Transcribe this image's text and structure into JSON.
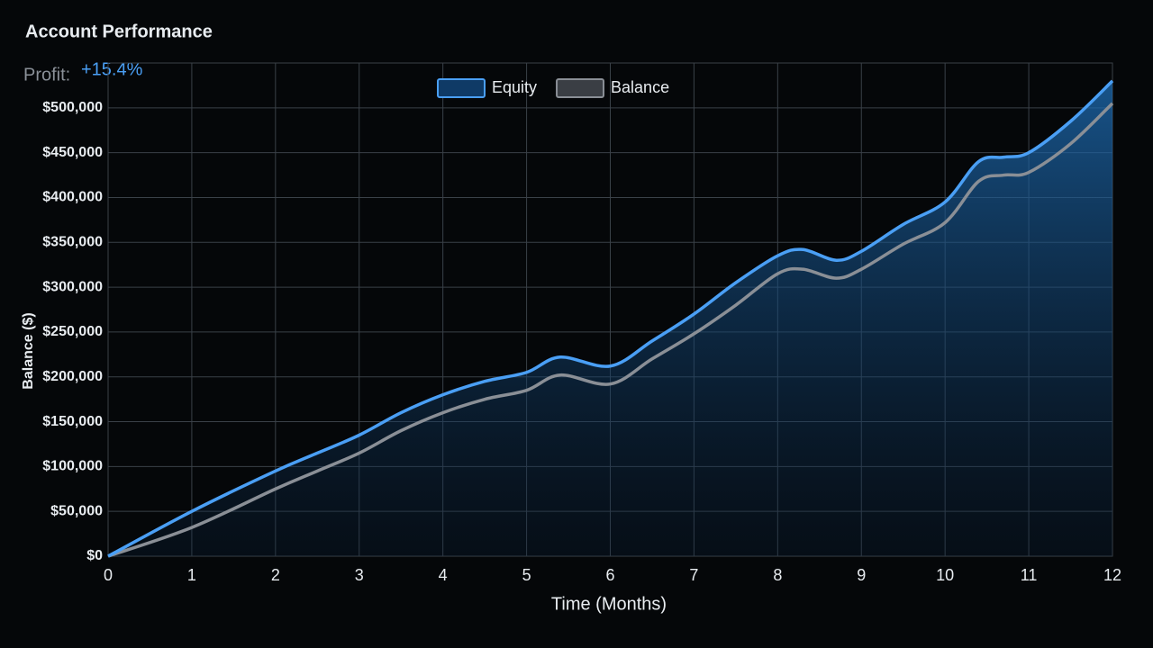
{
  "chart_data": {
    "type": "line",
    "title": "Account Performance",
    "subtitle_label": "Profit:",
    "subtitle_value": "+15.4%",
    "x_label": "Time (Months)",
    "y_label": "Balance ($)",
    "x": [
      0,
      1,
      2,
      2.5,
      3,
      3.5,
      4,
      4.5,
      5,
      5.4,
      6,
      6.5,
      7,
      7.5,
      8,
      8.3,
      8.7,
      9,
      9.5,
      10,
      10.4,
      10.7,
      11,
      11.5,
      12
    ],
    "series": [
      {
        "name": "Equity",
        "color": "#4a9ff5",
        "area": true,
        "values": [
          0,
          50000,
          95000,
          115000,
          135000,
          160000,
          180000,
          195000,
          205000,
          222000,
          212000,
          240000,
          270000,
          305000,
          335000,
          342000,
          330000,
          340000,
          370000,
          395000,
          440000,
          445000,
          450000,
          485000,
          530000
        ]
      },
      {
        "name": "Balance",
        "color": "#8a8f96",
        "values": [
          0,
          32000,
          75000,
          95000,
          115000,
          140000,
          160000,
          175000,
          185000,
          202000,
          192000,
          220000,
          248000,
          280000,
          315000,
          320000,
          310000,
          320000,
          348000,
          372000,
          418000,
          425000,
          428000,
          460000,
          505000
        ]
      }
    ],
    "xlim": [
      0,
      12
    ],
    "xticks": [
      0,
      1,
      2,
      3,
      4,
      5,
      6,
      7,
      8,
      9,
      10,
      11,
      12
    ],
    "ylim": [
      0,
      550000
    ],
    "yticks": [
      {
        "value": 0,
        "label": "$0"
      },
      {
        "value": 50000,
        "label": "$50,000"
      },
      {
        "value": 100000,
        "label": "$100,000"
      },
      {
        "value": 150000,
        "label": "$150,000"
      },
      {
        "value": 200000,
        "label": "$200,000"
      },
      {
        "value": 250000,
        "label": "$250,000"
      },
      {
        "value": 300000,
        "label": "$300,000"
      },
      {
        "value": 350000,
        "label": "$350,000"
      },
      {
        "value": 400000,
        "label": "$400,000"
      },
      {
        "value": 450000,
        "label": "$450,000"
      },
      {
        "value": 500000,
        "label": "$500,000"
      }
    ],
    "grid": true,
    "legend": "top"
  }
}
